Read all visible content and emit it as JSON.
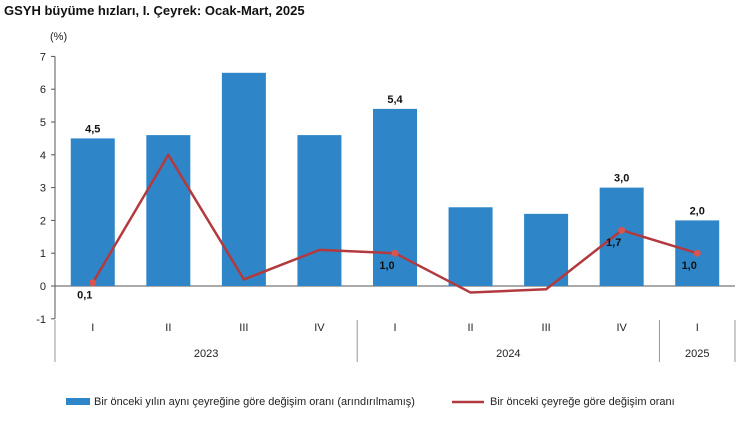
{
  "chart_data": {
    "type": "bar",
    "title": "GSYH büyüme hızları, I. Çeyrek: Ocak-Mart, 2025",
    "ylabel": "(%)",
    "ylim": [
      -1,
      7
    ],
    "yticks": [
      "-1",
      "0",
      "1",
      "2",
      "3",
      "4",
      "5",
      "6",
      "7"
    ],
    "categories": [
      "I",
      "II",
      "III",
      "IV",
      "I",
      "II",
      "III",
      "IV",
      "I"
    ],
    "years": [
      {
        "label": "2023",
        "span": 4
      },
      {
        "label": "2024",
        "span": 4
      },
      {
        "label": "2025",
        "span": 1
      }
    ],
    "series": [
      {
        "name": "Bir önceki yılın aynı çeyreğine göre değişim oranı (arındırılmamış)",
        "type": "bar",
        "color": "#2e86c8",
        "values": [
          4.5,
          4.6,
          6.5,
          4.6,
          5.4,
          2.4,
          2.2,
          3.0,
          2.0
        ],
        "labels": [
          "4,5",
          "",
          "",
          "",
          "5,4",
          "",
          "",
          "3,0",
          "2,0"
        ]
      },
      {
        "name": "Bir önceki çeyreğe göre değişim oranı",
        "type": "line",
        "color": "#b23a3e",
        "values": [
          0.1,
          4.0,
          0.2,
          1.1,
          1.0,
          -0.2,
          -0.1,
          1.7,
          1.0
        ],
        "labels": [
          "0,1",
          "",
          "",
          "",
          "1,0",
          "",
          "",
          "1,7",
          "1,0"
        ]
      }
    ],
    "grid": false,
    "legend": "bottom"
  }
}
